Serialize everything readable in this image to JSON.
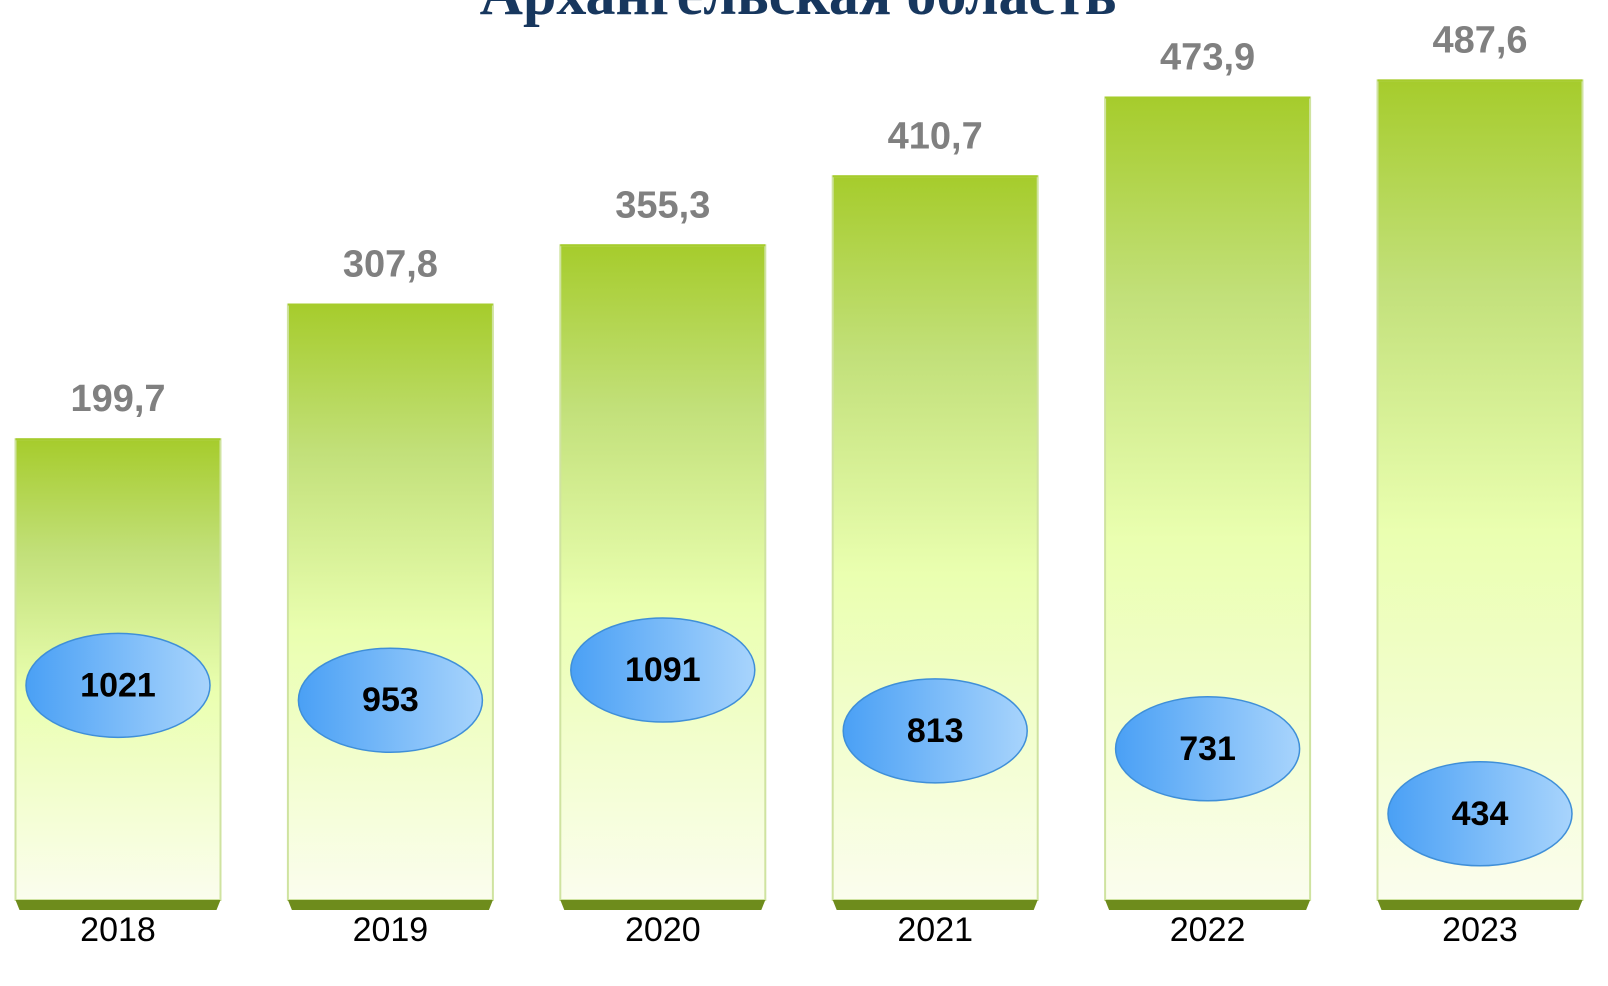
{
  "chart_data": {
    "type": "bar",
    "title": "Архангельская область",
    "categories": [
      "2018",
      "2019",
      "2020",
      "2021",
      "2022",
      "2023"
    ],
    "series": [
      {
        "color": "#a6cc2c",
        "values": [
          199.7,
          307.8,
          355.3,
          410.7,
          473.9,
          487.6
        ],
        "value_labels": [
          "199,7",
          "307,8",
          "355,3",
          "410,7",
          "473,9",
          "487,6"
        ]
      },
      {
        "color": "#5aaaf5",
        "axis": "y2",
        "values": [
          1021,
          953,
          1091,
          813,
          731,
          434
        ]
      }
    ],
    "ylim": [
      -170,
      520
    ],
    "y2lim": [
      40,
      3970
    ]
  }
}
